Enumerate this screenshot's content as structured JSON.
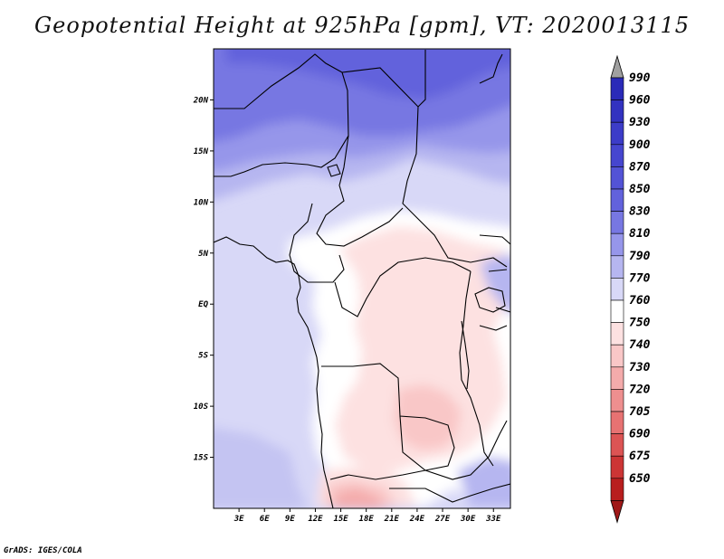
{
  "title": "Geopotential Height at 925hPa [gpm], VT: 2020013115",
  "credit": "GrADS: IGES/COLA",
  "map": {
    "lat_labels": [
      "20N",
      "15N",
      "10N",
      "5N",
      "EQ",
      "5S",
      "10S",
      "15S"
    ],
    "lon_labels": [
      "3E",
      "6E",
      "9E",
      "12E",
      "15E",
      "18E",
      "21E",
      "24E",
      "27E",
      "30E",
      "33E"
    ],
    "lat_values": [
      20,
      15,
      10,
      5,
      0,
      -5,
      -10,
      -15
    ],
    "lon_values": [
      3,
      6,
      9,
      12,
      15,
      18,
      21,
      24,
      27,
      30,
      33
    ],
    "lon_range": [
      0,
      35
    ],
    "lat_range": [
      -20,
      25
    ]
  },
  "colorbar": {
    "levels": [
      "990",
      "960",
      "930",
      "900",
      "870",
      "850",
      "830",
      "810",
      "790",
      "770",
      "760",
      "750",
      "740",
      "730",
      "720",
      "705",
      "690",
      "675",
      "650"
    ],
    "colors": [
      "#2a2ab8",
      "#3232c0",
      "#3c3cc8",
      "#4646cf",
      "#5353d6",
      "#6262dc",
      "#7777e2",
      "#9696ea",
      "#b6b6f0",
      "#d8d8f7",
      "#ffffff",
      "#fde1e1",
      "#f9c7c7",
      "#f4abab",
      "#ee8f8f",
      "#e77272",
      "#dc5454",
      "#cc3535",
      "#b81e1e"
    ],
    "top_arrow_color": "#a0a0a0",
    "bottom_arrow_color": "#a01818"
  }
}
